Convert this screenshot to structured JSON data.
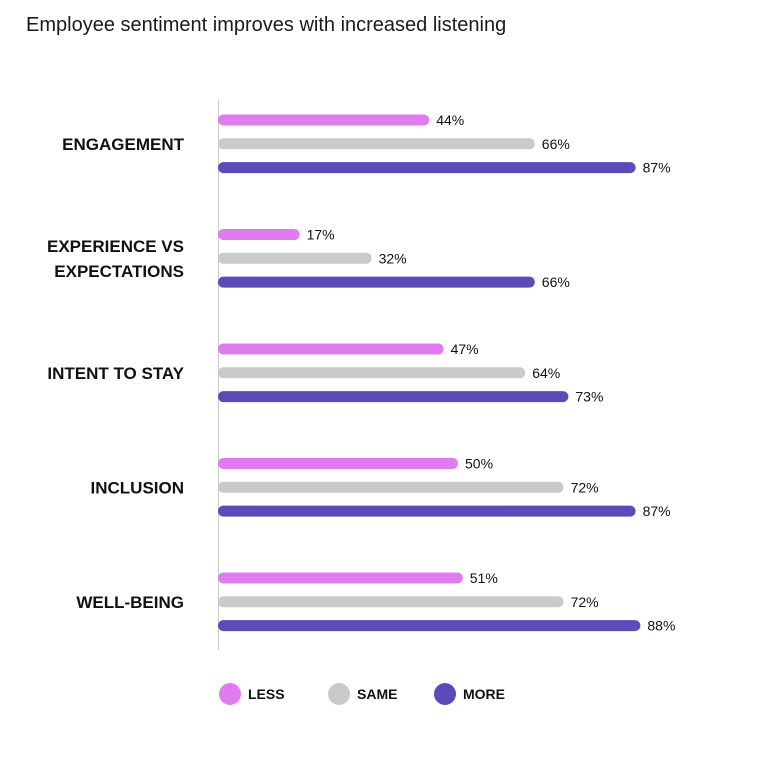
{
  "chart_data": {
    "type": "bar",
    "orientation": "horizontal",
    "title": "Employee sentiment improves with increased listening",
    "categories": [
      [
        "ENGAGEMENT"
      ],
      [
        "EXPERIENCE VS",
        "EXPECTATIONS"
      ],
      [
        "INTENT TO STAY"
      ],
      [
        "INCLUSION"
      ],
      [
        "WELL-BEING"
      ]
    ],
    "series": [
      {
        "name": "LESS",
        "color": "#E07BF0",
        "values": [
          44,
          17,
          47,
          50,
          51
        ]
      },
      {
        "name": "SAME",
        "color": "#C9CACC",
        "values": [
          66,
          32,
          64,
          72,
          72
        ]
      },
      {
        "name": "MORE",
        "color": "#5A4BB8",
        "values": [
          87,
          66,
          73,
          87,
          88
        ]
      }
    ],
    "value_suffix": "%",
    "xlim": [
      0,
      100
    ],
    "grid": false,
    "legend_position": "bottom"
  }
}
